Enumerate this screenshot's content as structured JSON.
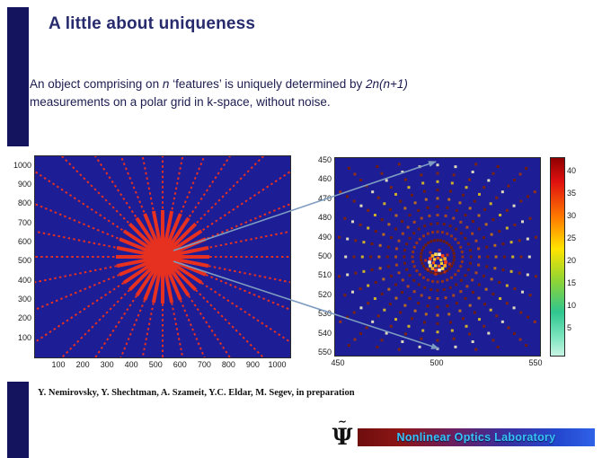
{
  "slide": {
    "title": "A little about uniqueness",
    "body": {
      "s1": "An object comprising on ",
      "s2": "n",
      "s3": " ‘features’ is uniquely determined by ",
      "s4": "2n(n+1)",
      "s5": "measurements on a polar grid in k-space, without noise."
    },
    "citation": "Y. Nemirovsky, Y. Shechtman, A. Szameit, Y.C. Eldar, M. Segev, in preparation",
    "banner_label": "Nonlinear Optics Laboratory",
    "logo": {
      "tilde": "∼",
      "psi": "Ψ"
    }
  },
  "figures": {
    "left_plot": {
      "y_ticks": [
        "1000",
        "900",
        "800",
        "700",
        "600",
        "500",
        "400",
        "300",
        "200",
        "100"
      ],
      "x_ticks": [
        "100",
        "200",
        "300",
        "400",
        "500",
        "600",
        "700",
        "800",
        "900",
        "1000"
      ],
      "bg_color": "#1d1d96",
      "ray_color": "#e63020",
      "n_rays": 16
    },
    "right_plot": {
      "y_ticks": [
        "450",
        "460",
        "470",
        "480",
        "490",
        "500",
        "510",
        "520",
        "530",
        "540",
        "550"
      ],
      "x_ticks": [
        "450",
        "500",
        "550"
      ],
      "bg_color": "#1d1d96"
    },
    "colorbar": {
      "ticks": [
        "40",
        "35",
        "30",
        "25",
        "20",
        "15",
        "10",
        "5"
      ]
    }
  },
  "colors": {
    "accent_bar": "#14145e",
    "title_text": "#272b6e",
    "banner_text": "#38c4f8",
    "arrow": "#7d9cc0"
  },
  "chart_data": [
    {
      "type": "scatter",
      "title": "",
      "xlabel": "",
      "ylabel": "",
      "xlim": [
        0,
        1050
      ],
      "ylim": [
        0,
        1050
      ],
      "x_ticks": [
        100,
        200,
        300,
        400,
        500,
        600,
        700,
        800,
        900,
        1000
      ],
      "y_ticks": [
        1000,
        900,
        800,
        700,
        600,
        500,
        400,
        300,
        200,
        100
      ],
      "description": "Polar-grid sampling pattern in k-space: red dotted rays radiating from center (500,500) on dark blue background, with red zoom box outlining the central region"
    },
    {
      "type": "scatter",
      "title": "",
      "xlabel": "",
      "ylabel": "",
      "xlim": [
        445,
        555
      ],
      "ylim": [
        450,
        550
      ],
      "x_ticks": [
        450,
        500,
        550
      ],
      "y_ticks": [
        450,
        460,
        470,
        480,
        490,
        500,
        510,
        520,
        530,
        540,
        550
      ],
      "colorbar_ticks": [
        40,
        35,
        30,
        25,
        20,
        15,
        10,
        5
      ],
      "description": "Zoom of the central k-space region: sparse polar-grid sample points (mostly dark red) with a bright ring-shaped feature near (500,505); jet-style colorbar from 40 (red, top) to 5 (pale green, bottom)"
    }
  ]
}
